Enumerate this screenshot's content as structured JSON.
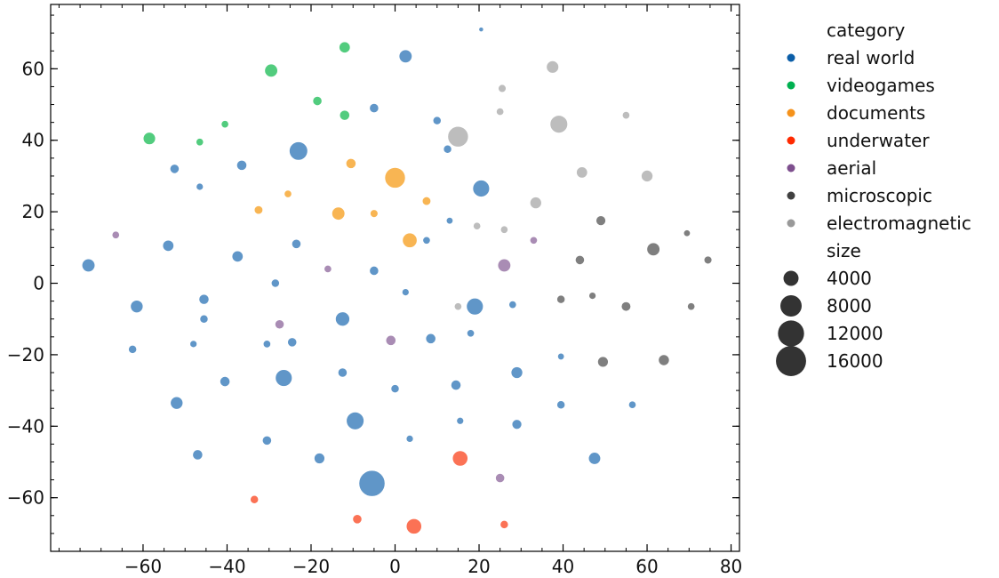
{
  "chart_data": {
    "type": "scatter",
    "xlim": [
      -82,
      82
    ],
    "ylim": [
      -75,
      78
    ],
    "x_ticks": [
      -60,
      -40,
      -20,
      0,
      20,
      40,
      60,
      80
    ],
    "y_ticks": [
      -60,
      -40,
      -20,
      0,
      20,
      40,
      60
    ],
    "x_tick_labels": [
      "−60",
      "−40",
      "−20",
      "0",
      "20",
      "40",
      "60",
      "80"
    ],
    "y_tick_labels": [
      "−60",
      "−40",
      "−20",
      "0",
      "20",
      "40",
      "60"
    ],
    "grid": false,
    "legend_position": "outside-right",
    "legend": {
      "hue_title": "category",
      "size_title": "size",
      "categories": [
        {
          "key": "real_world",
          "label": "real world",
          "color": "#0b5ea8",
          "point_color": "#6096c8"
        },
        {
          "key": "videogames",
          "label": "videogames",
          "color": "#00b050",
          "point_color": "#52cc7e"
        },
        {
          "key": "documents",
          "label": "documents",
          "color": "#f5921b",
          "point_color": "#f8b553"
        },
        {
          "key": "underwater",
          "label": "underwater",
          "color": "#ff2a00",
          "point_color": "#fb7255"
        },
        {
          "key": "aerial",
          "label": "aerial",
          "color": "#7e4f8e",
          "point_color": "#a98cb4"
        },
        {
          "key": "microscopic",
          "label": "microscopic",
          "color": "#404040",
          "point_color": "#7f7f7f"
        },
        {
          "key": "electromagnetic",
          "label": "electromagnetic",
          "color": "#999999",
          "point_color": "#bdbdbd"
        }
      ],
      "sizes": [
        {
          "label": "4000",
          "value": 4000
        },
        {
          "label": "8000",
          "value": 8000
        },
        {
          "label": "12000",
          "value": 12000
        },
        {
          "label": "16000",
          "value": 16000
        }
      ]
    },
    "series": [
      {
        "category": "real_world",
        "points": [
          [
            20.5,
            71,
            400
          ],
          [
            2.5,
            63.5,
            3000
          ],
          [
            -5,
            49,
            1500
          ],
          [
            10,
            45.5,
            1200
          ],
          [
            -23,
            37,
            6000
          ],
          [
            12.5,
            37.5,
            1200
          ],
          [
            -36.5,
            33,
            1800
          ],
          [
            -52.5,
            32,
            1500
          ],
          [
            -46.5,
            27,
            900
          ],
          [
            20.5,
            26.5,
            5000
          ],
          [
            13,
            17.5,
            800
          ],
          [
            7.5,
            12,
            1000
          ],
          [
            -54,
            10.5,
            2200
          ],
          [
            -23.5,
            11,
            1500
          ],
          [
            -73,
            5,
            3000
          ],
          [
            -37.5,
            7.5,
            2200
          ],
          [
            -5,
            3.5,
            1500
          ],
          [
            -28.5,
            0,
            1200
          ],
          [
            2.5,
            -2.5,
            900
          ],
          [
            -45.5,
            -4.5,
            1800
          ],
          [
            -61.5,
            -6.5,
            2800
          ],
          [
            19,
            -6.5,
            5000
          ],
          [
            28,
            -6,
            1000
          ],
          [
            -45.5,
            -10,
            1200
          ],
          [
            -12.5,
            -10,
            3600
          ],
          [
            -48,
            -17,
            900
          ],
          [
            -30.5,
            -17,
            1000
          ],
          [
            -24.5,
            -16.5,
            1500
          ],
          [
            8.5,
            -15.5,
            1800
          ],
          [
            18,
            -14,
            1000
          ],
          [
            -62.5,
            -18.5,
            1200
          ],
          [
            39.5,
            -20.5,
            800
          ],
          [
            -12.5,
            -25,
            1500
          ],
          [
            -40.5,
            -27.5,
            1800
          ],
          [
            -26.5,
            -26.5,
            5000
          ],
          [
            14.5,
            -28.5,
            1800
          ],
          [
            29,
            -25,
            2400
          ],
          [
            -52,
            -33.5,
            2800
          ],
          [
            0,
            -29.5,
            1200
          ],
          [
            39.5,
            -34,
            1200
          ],
          [
            56.5,
            -34,
            1000
          ],
          [
            15.5,
            -38.5,
            900
          ],
          [
            -9.5,
            -38.5,
            5500
          ],
          [
            29,
            -39.5,
            1700
          ],
          [
            -30.5,
            -44,
            1500
          ],
          [
            3.5,
            -43.5,
            900
          ],
          [
            -47,
            -48,
            1800
          ],
          [
            -18,
            -49,
            2000
          ],
          [
            47.5,
            -49,
            2600
          ],
          [
            -5.5,
            -56,
            12000
          ]
        ]
      },
      {
        "category": "videogames",
        "points": [
          [
            -12,
            66,
            2200
          ],
          [
            -29.5,
            59.5,
            3000
          ],
          [
            -18.5,
            51,
            1500
          ],
          [
            -12,
            47,
            1800
          ],
          [
            -40.5,
            44.5,
            1000
          ],
          [
            -58.5,
            40.5,
            2700
          ],
          [
            -46.5,
            39.5,
            1000
          ]
        ]
      },
      {
        "category": "documents",
        "points": [
          [
            -10.5,
            33.5,
            1800
          ],
          [
            0,
            29.5,
            7500
          ],
          [
            -25.5,
            25,
            1000
          ],
          [
            7.5,
            23,
            1300
          ],
          [
            -32.5,
            20.5,
            1300
          ],
          [
            -13.5,
            19.5,
            3000
          ],
          [
            -5,
            19.5,
            1100
          ],
          [
            3.5,
            12,
            3800
          ]
        ]
      },
      {
        "category": "underwater",
        "points": [
          [
            15.5,
            -49,
            4200
          ],
          [
            -33.5,
            -60.5,
            1200
          ],
          [
            -9,
            -66,
            1500
          ],
          [
            4.5,
            -68,
            4200
          ],
          [
            26,
            -67.5,
            1200
          ]
        ]
      },
      {
        "category": "aerial",
        "points": [
          [
            -66.5,
            13.5,
            1000
          ],
          [
            -16,
            4,
            1000
          ],
          [
            33,
            12,
            1000
          ],
          [
            26,
            5,
            3000
          ],
          [
            -27.5,
            -11.5,
            1500
          ],
          [
            -1,
            -16,
            1800
          ],
          [
            25,
            -54.5,
            1500
          ]
        ]
      },
      {
        "category": "microscopic",
        "points": [
          [
            49,
            17.5,
            1700
          ],
          [
            69.5,
            14,
            800
          ],
          [
            61.5,
            9.5,
            3000
          ],
          [
            44,
            6.5,
            1500
          ],
          [
            74.5,
            6.5,
            1100
          ],
          [
            39.5,
            -4.5,
            1200
          ],
          [
            47,
            -3.5,
            900
          ],
          [
            55,
            -6.5,
            1600
          ],
          [
            70.5,
            -6.5,
            1000
          ],
          [
            49.5,
            -22,
            2000
          ],
          [
            64,
            -21.5,
            2100
          ]
        ]
      },
      {
        "category": "electromagnetic",
        "points": [
          [
            37.5,
            60.5,
            2700
          ],
          [
            25.5,
            54.5,
            1100
          ],
          [
            39,
            44.5,
            5500
          ],
          [
            25,
            48,
            1000
          ],
          [
            55,
            47,
            1000
          ],
          [
            15,
            41,
            7500
          ],
          [
            44.5,
            31,
            2200
          ],
          [
            60,
            30,
            2400
          ],
          [
            33.5,
            22.5,
            2400
          ],
          [
            19.5,
            16,
            1000
          ],
          [
            26,
            15,
            1000
          ],
          [
            15,
            -6.5,
            1000
          ]
        ]
      }
    ]
  }
}
